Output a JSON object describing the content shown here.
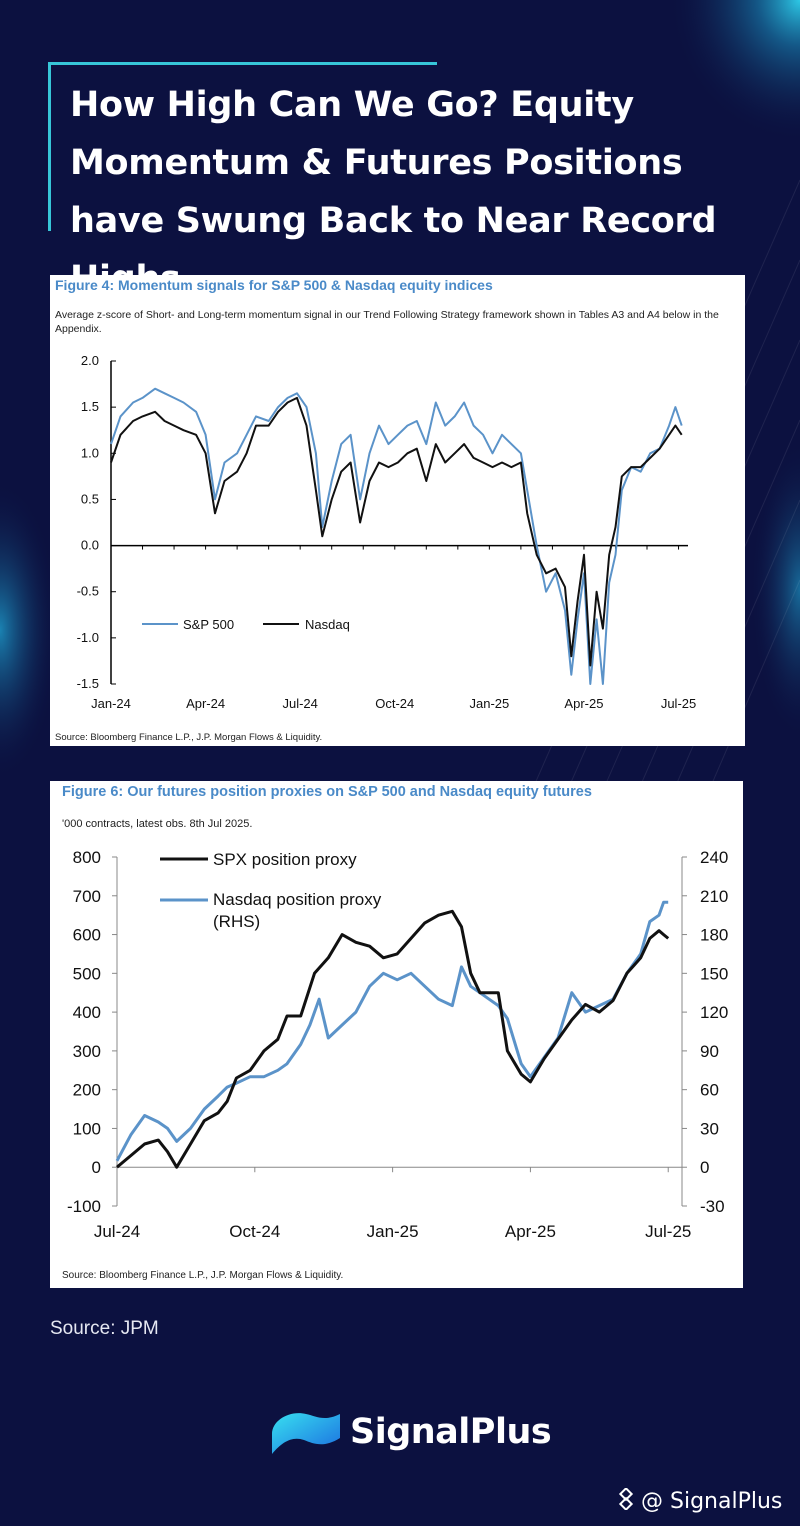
{
  "page": {
    "title": "How High Can We Go?  Equity Momentum & Futures Positions have Swung Back to Near Record Highs",
    "source_note": "Source: JPM",
    "brand_name": "SignalPlus",
    "handle": "@ SignalPlus"
  },
  "colors": {
    "background": "#0c1140",
    "accent": "#37c6d8",
    "figure_title": "#4a8ac8",
    "series_blue": "#5b93c9",
    "series_black": "#111111"
  },
  "chart_data": [
    {
      "type": "line",
      "figure_title": "Figure 4: Momentum signals for S&P 500 & Nasdaq equity indices",
      "subtitle": "Average z-score of Short- and Long-term momentum signal in our Trend Following Strategy framework shown in Tables A3 and A4 below in the Appendix.",
      "source": "Source: Bloomberg Finance L.P., J.P. Morgan Flows & Liquidity.",
      "x_tick_labels": [
        "Jan-24",
        "Apr-24",
        "Jul-24",
        "Oct-24",
        "Jan-25",
        "Apr-25",
        "Jul-25"
      ],
      "x_tick_positions": [
        0,
        3,
        6,
        9,
        12,
        15,
        18
      ],
      "xlim": [
        0,
        18.3
      ],
      "ylim": [
        -1.5,
        2.0
      ],
      "y_ticks": [
        2.0,
        1.5,
        1.0,
        0.5,
        0.0,
        -0.5,
        -1.0,
        -1.5
      ],
      "y_tick_labels": [
        "2.0",
        "1.5",
        "1.0",
        "0.5",
        "0.0",
        "-0.5",
        "-1.0",
        "-1.5"
      ],
      "legend": "lower-left",
      "series": [
        {
          "name": "S&P 500",
          "color": "#5b93c9",
          "x": [
            0,
            0.3,
            0.7,
            1.0,
            1.4,
            1.7,
            2.0,
            2.3,
            2.7,
            3.0,
            3.3,
            3.6,
            4.0,
            4.3,
            4.6,
            5.0,
            5.3,
            5.6,
            5.9,
            6.2,
            6.5,
            6.7,
            7.0,
            7.3,
            7.6,
            7.9,
            8.2,
            8.5,
            8.8,
            9.1,
            9.4,
            9.7,
            10.0,
            10.3,
            10.6,
            10.9,
            11.2,
            11.5,
            11.8,
            12.1,
            12.4,
            12.7,
            13.0,
            13.2,
            13.5,
            13.8,
            14.1,
            14.4,
            14.6,
            14.8,
            15.0,
            15.2,
            15.4,
            15.6,
            15.8,
            16.0,
            16.2,
            16.5,
            16.8,
            17.1,
            17.4,
            17.7,
            17.9,
            18.1
          ],
          "y": [
            1.1,
            1.4,
            1.55,
            1.6,
            1.7,
            1.65,
            1.6,
            1.55,
            1.45,
            1.2,
            0.5,
            0.9,
            1.0,
            1.2,
            1.4,
            1.35,
            1.5,
            1.6,
            1.65,
            1.5,
            1.0,
            0.2,
            0.7,
            1.1,
            1.2,
            0.5,
            1.0,
            1.3,
            1.1,
            1.2,
            1.3,
            1.35,
            1.1,
            1.55,
            1.3,
            1.4,
            1.55,
            1.3,
            1.2,
            1.0,
            1.2,
            1.1,
            1.0,
            0.6,
            0.0,
            -0.5,
            -0.3,
            -0.7,
            -1.4,
            -0.8,
            -0.3,
            -1.5,
            -0.8,
            -1.5,
            -0.4,
            -0.1,
            0.6,
            0.85,
            0.8,
            1.0,
            1.05,
            1.3,
            1.5,
            1.3
          ]
        },
        {
          "name": "Nasdaq",
          "color": "#111111",
          "x": [
            0,
            0.3,
            0.7,
            1.0,
            1.4,
            1.7,
            2.0,
            2.3,
            2.7,
            3.0,
            3.3,
            3.6,
            4.0,
            4.3,
            4.6,
            5.0,
            5.3,
            5.6,
            5.9,
            6.2,
            6.5,
            6.7,
            7.0,
            7.3,
            7.6,
            7.9,
            8.2,
            8.5,
            8.8,
            9.1,
            9.4,
            9.7,
            10.0,
            10.3,
            10.6,
            10.9,
            11.2,
            11.5,
            11.8,
            12.1,
            12.4,
            12.7,
            13.0,
            13.2,
            13.5,
            13.8,
            14.1,
            14.4,
            14.6,
            14.8,
            15.0,
            15.2,
            15.4,
            15.6,
            15.8,
            16.0,
            16.2,
            16.5,
            16.8,
            17.1,
            17.4,
            17.7,
            17.9,
            18.1
          ],
          "y": [
            0.9,
            1.2,
            1.35,
            1.4,
            1.45,
            1.35,
            1.3,
            1.25,
            1.2,
            1.0,
            0.35,
            0.7,
            0.8,
            1.0,
            1.3,
            1.3,
            1.45,
            1.55,
            1.6,
            1.3,
            0.6,
            0.1,
            0.5,
            0.8,
            0.9,
            0.25,
            0.7,
            0.9,
            0.85,
            0.9,
            1.0,
            1.05,
            0.7,
            1.1,
            0.9,
            1.0,
            1.1,
            0.95,
            0.9,
            0.85,
            0.9,
            0.85,
            0.9,
            0.35,
            -0.1,
            -0.3,
            -0.25,
            -0.45,
            -1.2,
            -0.6,
            -0.1,
            -1.3,
            -0.5,
            -0.9,
            -0.1,
            0.2,
            0.75,
            0.85,
            0.85,
            0.95,
            1.05,
            1.2,
            1.3,
            1.2
          ]
        }
      ]
    },
    {
      "type": "line",
      "figure_title": "Figure 6: Our futures position proxies on S&P 500 and Nasdaq equity futures",
      "subtitle": "'000 contracts, latest obs. 8th Jul 2025.",
      "source": "Source: Bloomberg Finance L.P., J.P. Morgan Flows & Liquidity.",
      "x_tick_labels": [
        "Jul-24",
        "Oct-24",
        "Jan-25",
        "Apr-25",
        "Jul-25"
      ],
      "x_tick_positions": [
        0,
        3,
        6,
        9,
        12
      ],
      "xlim": [
        0,
        12.3
      ],
      "ylim_left": [
        -100,
        800
      ],
      "ylim_right": [
        -30,
        240
      ],
      "y_ticks_left": [
        800,
        700,
        600,
        500,
        400,
        300,
        200,
        100,
        0,
        -100
      ],
      "y_tick_labels_left": [
        "800",
        "700",
        "600",
        "500",
        "400",
        "300",
        "200",
        "100",
        "0",
        "-100"
      ],
      "y_ticks_right": [
        240,
        210,
        180,
        150,
        120,
        90,
        60,
        30,
        0,
        -30
      ],
      "y_tick_labels_right": [
        "240",
        "210",
        "180",
        "150",
        "120",
        "90",
        "60",
        "30",
        "0",
        "-30"
      ],
      "legend": "top-left",
      "series": [
        {
          "name": "SPX position proxy",
          "axis": "left",
          "color": "#111111",
          "x": [
            0,
            0.3,
            0.6,
            0.9,
            1.1,
            1.3,
            1.6,
            1.9,
            2.2,
            2.4,
            2.6,
            2.9,
            3.2,
            3.5,
            3.7,
            4.0,
            4.3,
            4.6,
            4.9,
            5.2,
            5.5,
            5.8,
            6.1,
            6.4,
            6.7,
            7.0,
            7.3,
            7.5,
            7.7,
            7.9,
            8.1,
            8.3,
            8.5,
            8.8,
            9.0,
            9.3,
            9.6,
            9.9,
            10.2,
            10.5,
            10.8,
            11.1,
            11.4,
            11.6,
            11.8,
            11.9,
            12.0
          ],
          "y": [
            0,
            30,
            60,
            70,
            40,
            0,
            60,
            120,
            140,
            170,
            230,
            250,
            300,
            330,
            390,
            390,
            500,
            540,
            600,
            580,
            570,
            540,
            550,
            590,
            630,
            650,
            660,
            620,
            500,
            450,
            450,
            450,
            300,
            240,
            220,
            280,
            330,
            380,
            420,
            400,
            430,
            500,
            540,
            590,
            610,
            600,
            590
          ]
        },
        {
          "name": "Nasdaq position proxy\n(RHS)",
          "axis": "right",
          "color": "#5b93c9",
          "x": [
            0,
            0.3,
            0.6,
            0.9,
            1.1,
            1.3,
            1.6,
            1.9,
            2.2,
            2.4,
            2.6,
            2.9,
            3.2,
            3.5,
            3.7,
            4.0,
            4.2,
            4.4,
            4.6,
            4.9,
            5.2,
            5.5,
            5.8,
            6.1,
            6.4,
            6.7,
            7.0,
            7.3,
            7.5,
            7.7,
            7.9,
            8.1,
            8.3,
            8.5,
            8.8,
            9.0,
            9.3,
            9.6,
            9.9,
            10.2,
            10.5,
            10.8,
            11.1,
            11.4,
            11.6,
            11.8,
            11.9,
            12.0
          ],
          "y": [
            5,
            25,
            40,
            35,
            30,
            20,
            30,
            45,
            55,
            62,
            65,
            70,
            70,
            75,
            80,
            95,
            110,
            130,
            100,
            110,
            120,
            140,
            150,
            145,
            150,
            140,
            130,
            125,
            155,
            140,
            135,
            130,
            125,
            115,
            80,
            70,
            85,
            100,
            135,
            120,
            125,
            130,
            150,
            165,
            190,
            195,
            205,
            205
          ]
        }
      ]
    }
  ]
}
